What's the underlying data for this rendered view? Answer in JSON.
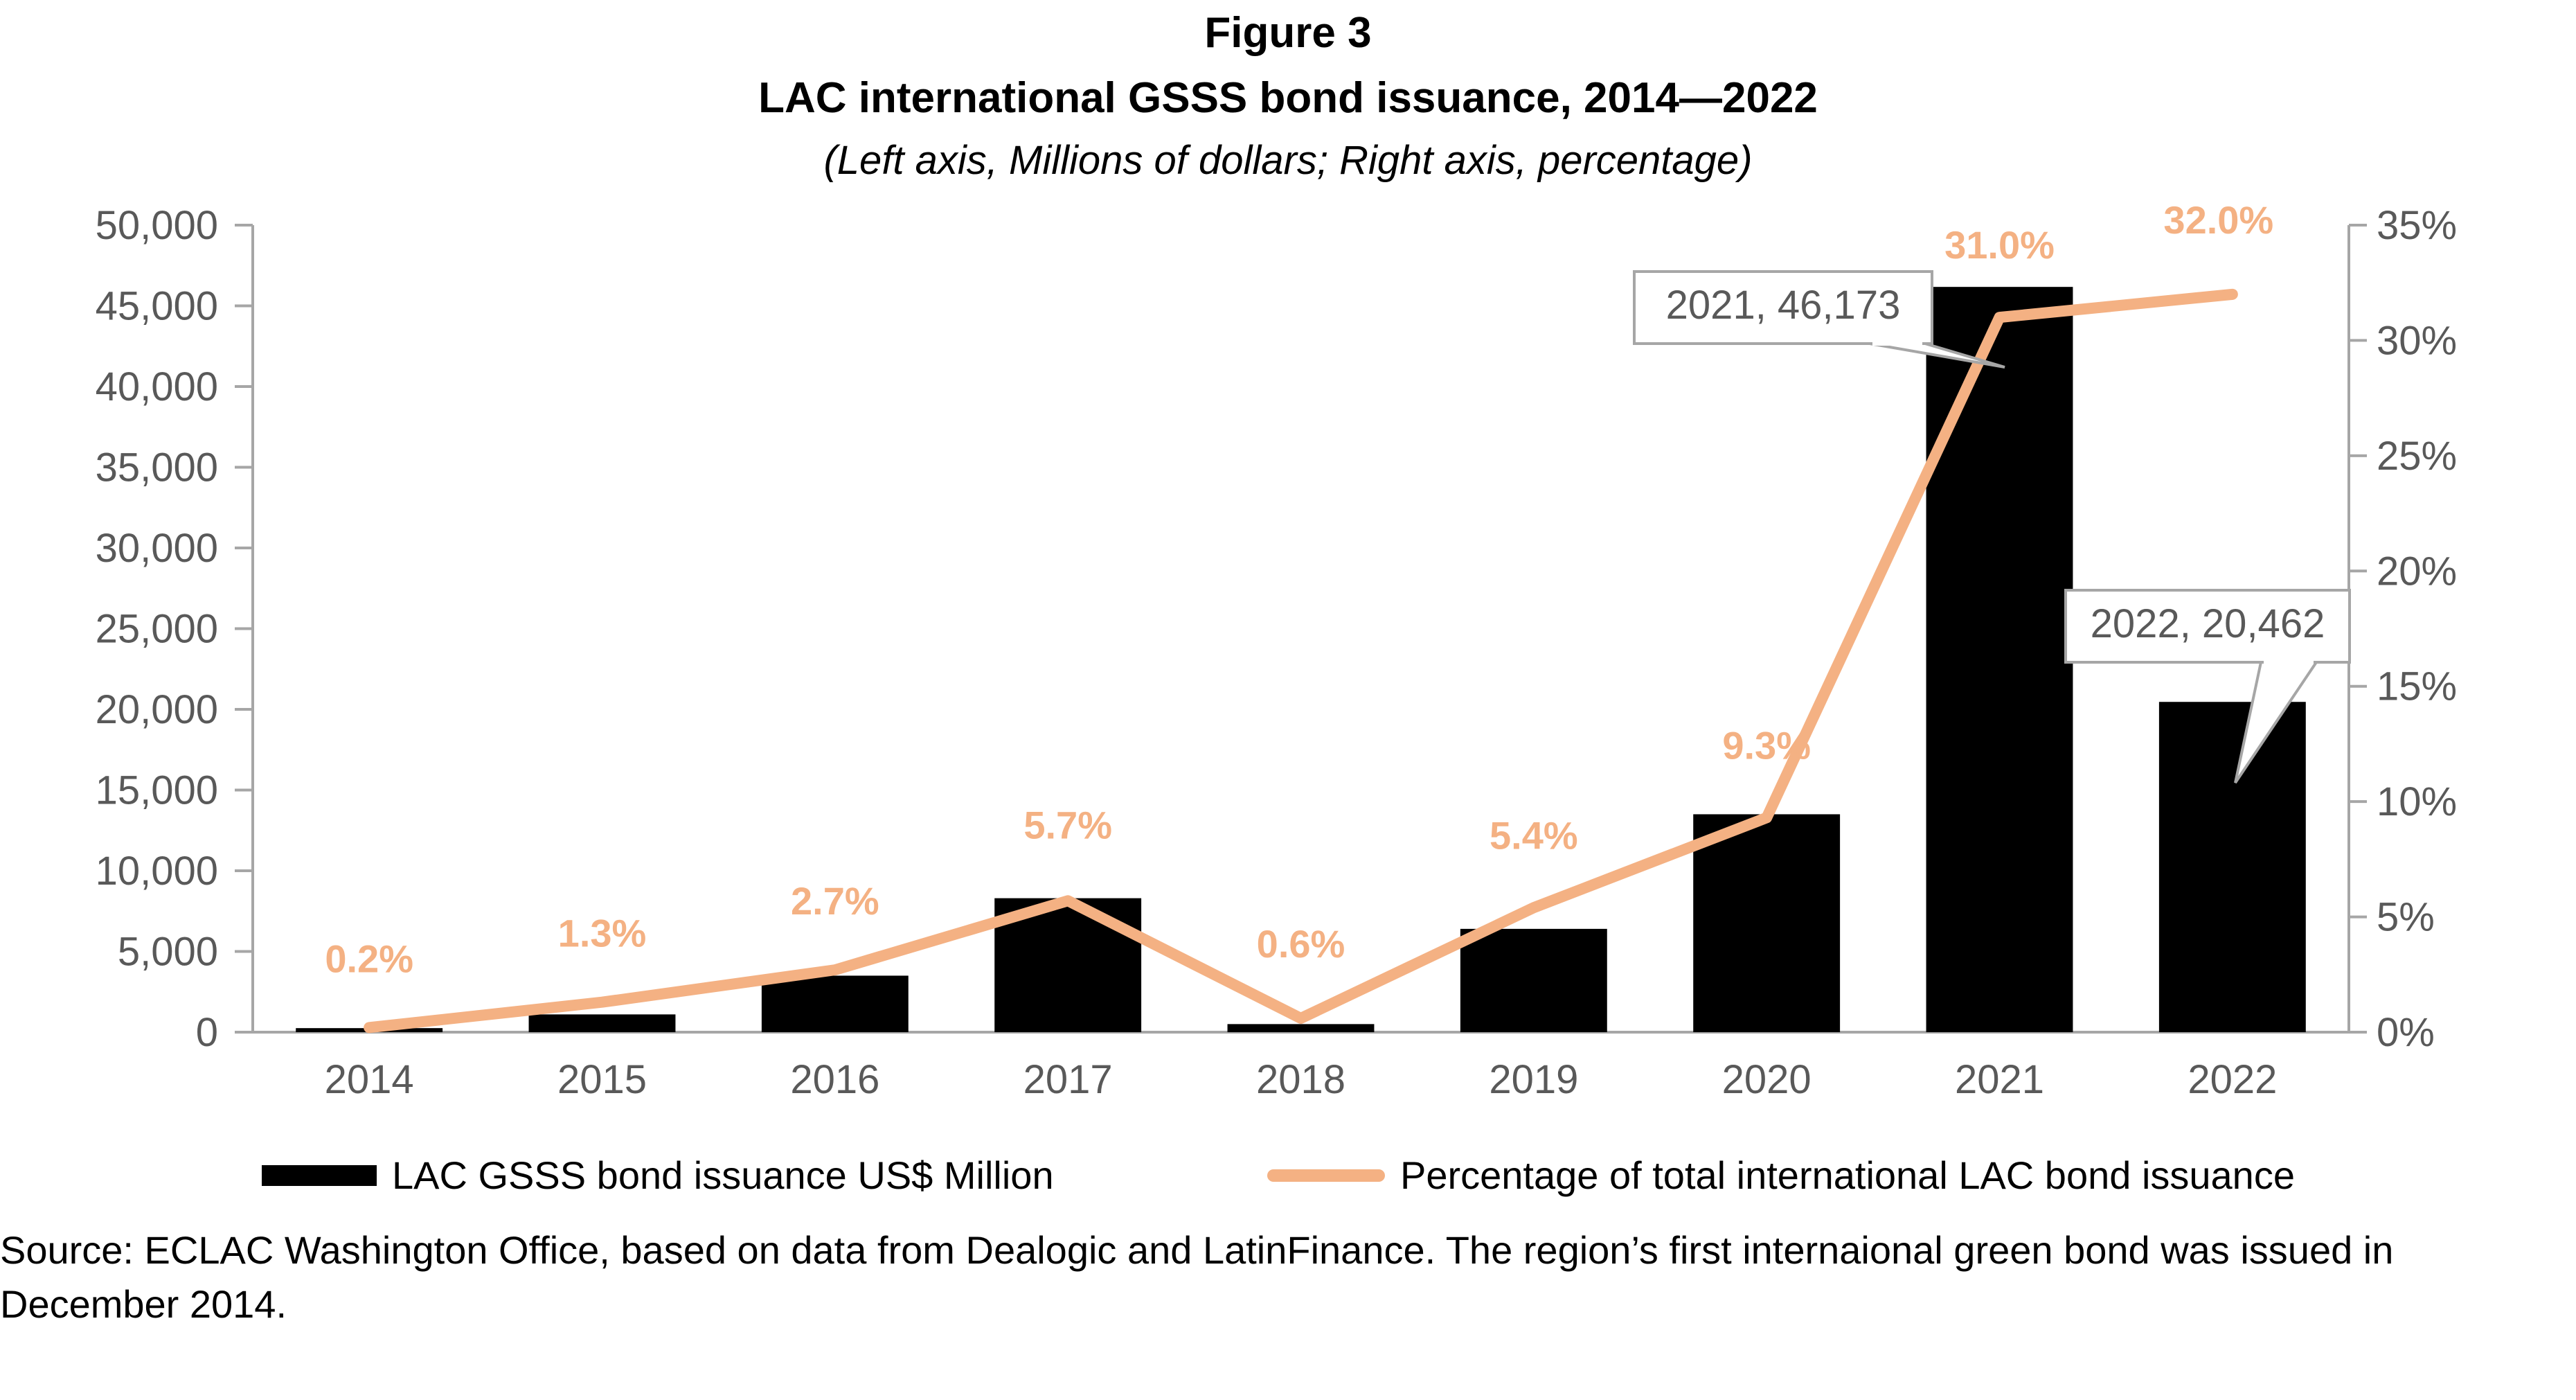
{
  "header": {
    "figure_label": "Figure 3",
    "title": "LAC international GSSS bond issuance, 2014—2022",
    "subtitle": "(Left axis, Millions of dollars; Right axis, percentage)"
  },
  "colors": {
    "bar": "#000000",
    "line": "#F4B183",
    "axis": "#A6A6A6",
    "label_text": "#595959"
  },
  "chart_data": {
    "type": "bar",
    "categories": [
      "2014",
      "2015",
      "2016",
      "2017",
      "2018",
      "2019",
      "2020",
      "2021",
      "2022"
    ],
    "series": [
      {
        "name": "LAC GSSS bond issuance US$ Million",
        "type": "bar",
        "axis": "left",
        "values": [
          250,
          1100,
          3500,
          8300,
          500,
          6400,
          13500,
          46173,
          20462
        ]
      },
      {
        "name": "Percentage of total international LAC bond issuance",
        "type": "line",
        "axis": "right",
        "values": [
          0.2,
          1.3,
          2.7,
          5.7,
          0.6,
          5.4,
          9.3,
          31.0,
          32.0
        ],
        "labels": [
          "0.2%",
          "1.3%",
          "2.7%",
          "5.7%",
          "0.6%",
          "5.4%",
          "9.3%",
          "31.0%",
          "32.0%"
        ]
      }
    ],
    "y_left": {
      "ylim": [
        0,
        50000
      ],
      "ticks": [
        "0",
        "5,000",
        "10,000",
        "15,000",
        "20,000",
        "25,000",
        "30,000",
        "35,000",
        "40,000",
        "45,000",
        "50,000"
      ]
    },
    "y_right": {
      "ylim": [
        0,
        35
      ],
      "ticks": [
        "0%",
        "5%",
        "10%",
        "15%",
        "20%",
        "25%",
        "30%",
        "35%"
      ]
    },
    "callouts": [
      {
        "category": "2021",
        "text": "2021, 46,173"
      },
      {
        "category": "2022",
        "text": "2022, 20,462"
      }
    ],
    "legend_position": "bottom",
    "grid": false
  },
  "footer": {
    "source_line1": "Source: ECLAC Washington Office, based on data from Dealogic and LatinFinance. The region’s first internaional green bond was issued in",
    "source_line2": "December 2014."
  }
}
